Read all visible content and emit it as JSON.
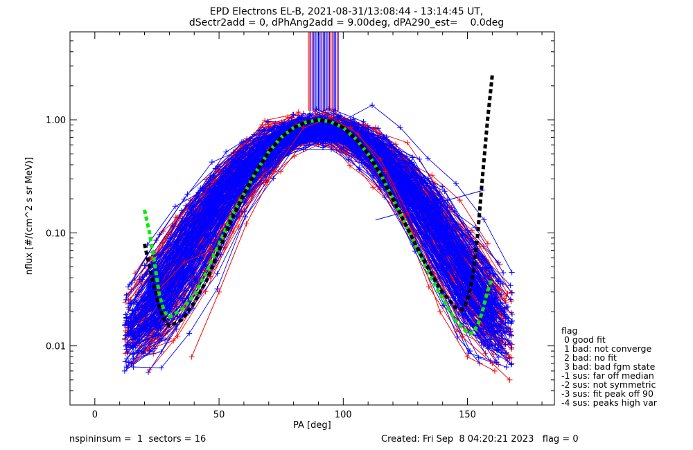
{
  "header": {
    "title": "EPD Electrons EL-B, 2021-08-31/13:08:44 - 13:14:45 UT,",
    "subtitle": "dSectr2add = 0, dPhAng2add = 9.00deg, dPA290_est=    0.0deg"
  },
  "footer": {
    "left": "nspininsum =  1  sectors = 16",
    "right": "Created: Fri Sep  8 04:20:21 2023   flag = 0"
  },
  "flag_legend": {
    "title": "flag",
    "items": [
      " 0 good fit",
      " 1 bad: not converge",
      " 2 bad: no fit",
      " 3 bad: bad fgm state",
      "-1 sus: far off median",
      "-2 sus: not symmetric",
      "-3 sus: fit peak off 90",
      "-4 sus: peaks high var"
    ]
  },
  "chart_data": {
    "type": "line",
    "xlabel": "PA [deg]",
    "ylabel": "nflux [#/(cm^2 s sr MeV)]",
    "xlim": [
      -10,
      185
    ],
    "ylim": [
      0.003,
      6.0
    ],
    "yscale": "log",
    "xticks": [
      0,
      50,
      100,
      150
    ],
    "xtick_labels": [
      "0",
      "50",
      "100",
      "150"
    ],
    "yticks": [
      0.01,
      0.1,
      1.0
    ],
    "ytick_labels": [
      "0.01",
      "0.10",
      "1.00"
    ],
    "colors": {
      "spin_a": "#ff0000",
      "spin_b": "#0000ff",
      "fit_a": "#00ee00",
      "fit_b": "#000000"
    },
    "profile_spread": {
      "spin_a_count": 110,
      "spin_b_count": 150,
      "pa_step_deg": 11.25
    },
    "series": [
      {
        "color": "#0000ff",
        "marker": "+",
        "x": [
          12,
          23,
          34,
          45,
          56,
          68,
          79,
          90,
          101,
          113,
          124,
          135,
          146,
          155
        ],
        "y": [
          0.006,
          0.009,
          0.018,
          0.05,
          0.14,
          0.42,
          0.78,
          0.95,
          0.8,
          0.45,
          0.16,
          0.045,
          0.012,
          0.007
        ]
      },
      {
        "color": "#0000ff",
        "marker": "+",
        "x": [
          18,
          29,
          40,
          51,
          62,
          74,
          85,
          96,
          107,
          118,
          129,
          140,
          151
        ],
        "y": [
          0.012,
          0.022,
          0.04,
          0.1,
          0.26,
          0.6,
          0.9,
          0.92,
          0.65,
          0.3,
          0.1,
          0.03,
          0.009
        ]
      },
      {
        "color": "#ff0000",
        "marker": "+",
        "x": [
          25,
          36,
          47,
          58,
          70,
          81,
          92,
          103,
          115,
          126,
          137,
          148,
          160,
          167
        ],
        "y": [
          0.03,
          0.055,
          0.07,
          0.2,
          0.55,
          0.9,
          1.0,
          0.85,
          0.45,
          0.15,
          0.04,
          0.012,
          0.007,
          0.005
        ]
      },
      {
        "color": "#ff0000",
        "marker": "+",
        "x": [
          39,
          50,
          61,
          72,
          84,
          95,
          106,
          117,
          128,
          139,
          150,
          161
        ],
        "y": [
          0.008,
          0.03,
          0.12,
          0.35,
          0.85,
          1.05,
          0.75,
          0.35,
          0.1,
          0.02,
          0.008,
          0.006
        ]
      }
    ],
    "vertical_lines": {
      "x_min": 86,
      "x_max": 98,
      "y_from": 1.2,
      "y_to": 6.0
    },
    "fits": [
      {
        "name": "",
        "color": "#00ee00",
        "style": "dashed",
        "x": [
          20,
          22,
          24,
          26,
          28,
          30,
          35,
          40,
          45,
          50,
          55,
          60,
          65,
          70,
          75,
          80,
          85,
          90,
          95,
          100,
          105,
          110,
          115,
          120,
          125,
          130,
          135,
          140,
          145,
          150,
          152,
          154,
          156,
          158,
          160
        ],
        "y": [
          0.16,
          0.1,
          0.055,
          0.028,
          0.02,
          0.018,
          0.021,
          0.028,
          0.045,
          0.08,
          0.14,
          0.22,
          0.35,
          0.52,
          0.7,
          0.85,
          0.95,
          1.0,
          0.96,
          0.85,
          0.68,
          0.5,
          0.33,
          0.2,
          0.12,
          0.07,
          0.042,
          0.026,
          0.017,
          0.013,
          0.013,
          0.015,
          0.02,
          0.03,
          0.04
        ]
      },
      {
        "name": "",
        "color": "#000000",
        "style": "dashed",
        "x": [
          20,
          22,
          24,
          26,
          28,
          30,
          35,
          40,
          45,
          50,
          55,
          60,
          65,
          70,
          75,
          80,
          85,
          90,
          95,
          100,
          105,
          110,
          115,
          120,
          125,
          130,
          135,
          140,
          145,
          148,
          150,
          152,
          154,
          156,
          158,
          160
        ],
        "y": [
          0.08,
          0.05,
          0.032,
          0.022,
          0.017,
          0.015,
          0.017,
          0.024,
          0.038,
          0.07,
          0.13,
          0.22,
          0.35,
          0.52,
          0.7,
          0.85,
          0.95,
          1.0,
          0.96,
          0.85,
          0.68,
          0.5,
          0.33,
          0.2,
          0.12,
          0.072,
          0.045,
          0.03,
          0.022,
          0.021,
          0.025,
          0.04,
          0.09,
          0.3,
          0.95,
          2.5
        ]
      }
    ],
    "outlier_segment": {
      "x": [
        113,
        157
      ],
      "y": [
        0.13,
        0.24
      ]
    }
  }
}
